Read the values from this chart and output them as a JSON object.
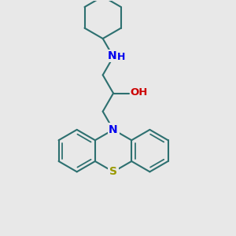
{
  "bg_color": "#e8e8e8",
  "bond_color": "#2d7070",
  "N_color": "#0000ee",
  "S_color": "#999900",
  "O_color": "#cc0000",
  "line_width": 1.5,
  "fig_size": [
    3.0,
    3.0
  ],
  "dpi": 100,
  "xlim": [
    0,
    10
  ],
  "ylim": [
    0,
    10
  ]
}
